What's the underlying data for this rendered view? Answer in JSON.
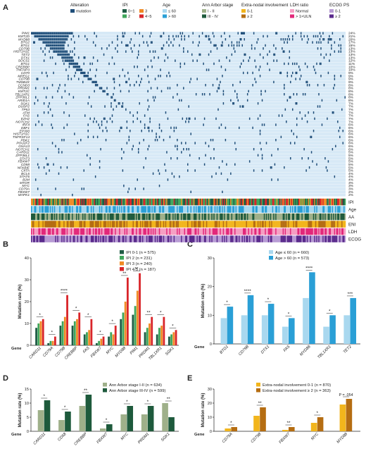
{
  "figure": {
    "panels": [
      "A",
      "B",
      "C",
      "D",
      "E"
    ],
    "axis_gene_label": "Gene",
    "mutation_rate_label": "Mutation rate (%)"
  },
  "legend_top": {
    "alteration": {
      "title": "Alteration",
      "items": [
        {
          "label": "mutation",
          "color": "#1f4e79"
        }
      ]
    },
    "ipi": {
      "title": "IPI",
      "items": [
        {
          "label": "0~1",
          "color": "#1f5c45"
        },
        {
          "label": "2",
          "color": "#3fa65b"
        },
        {
          "label": "3",
          "color": "#f08a24"
        },
        {
          "label": "4~5",
          "color": "#d9252a"
        }
      ]
    },
    "age": {
      "title": "Age",
      "items": [
        {
          "label": "≤ 60",
          "color": "#a9d8ef"
        },
        {
          "label": "> 60",
          "color": "#2a9fd6"
        }
      ]
    },
    "ann_arbor": {
      "title": "Ann Arbor stage",
      "items": [
        {
          "label": "I - II",
          "color": "#9fb08a"
        },
        {
          "label": "III - IV",
          "color": "#1e5a3c"
        }
      ]
    },
    "eni": {
      "title": "Extra-nodal involvement",
      "items": [
        {
          "label": "0-1",
          "color": "#f2b51c"
        },
        {
          "label": "≥ 2",
          "color": "#b56d12"
        }
      ]
    },
    "ldh": {
      "title": "LDH ratio",
      "items": [
        {
          "label": "Normal",
          "color": "#f59fc3"
        },
        {
          "label": "> 1×ULN",
          "color": "#e2287a"
        }
      ]
    },
    "ecog": {
      "title": "ECOG PS",
      "items": [
        {
          "label": "0-1",
          "color": "#b79bd4"
        },
        {
          "label": "≥ 2",
          "color": "#5a2a8c"
        }
      ]
    }
  },
  "annotation_tracks": [
    {
      "label": "IPI",
      "colors": [
        "#1f5c45",
        "#3fa65b",
        "#f08a24",
        "#d9252a"
      ]
    },
    {
      "label": "Age",
      "colors": [
        "#a9d8ef",
        "#2a9fd6"
      ]
    },
    {
      "label": "AA",
      "colors": [
        "#9fb08a",
        "#1e5a3c"
      ]
    },
    {
      "label": "ENI",
      "colors": [
        "#f2b51c",
        "#b56d12"
      ]
    },
    {
      "label": "LDH",
      "colors": [
        "#f59fc3",
        "#e2287a"
      ]
    },
    {
      "label": "ECOG",
      "colors": [
        "#b79bd4",
        "#5a2a8c"
      ]
    }
  ],
  "chart_data": [
    {
      "panel": "A",
      "type": "heatmap",
      "genes": [
        "PIM1",
        "KMT2D",
        "MYD88",
        "BTG2",
        "BTG1",
        "CD79B",
        "HIST1H1E",
        "TET2",
        "DTX1",
        "SOCS1",
        "BTG1",
        "CREBBP",
        "TNFAIP3",
        "CD70",
        "MPEG1",
        "CD79B",
        "TMSB4X",
        "CCND3",
        "PRDM1",
        "KMT2C",
        "TBL1XR1",
        "ZFP36L1",
        "ARID1A",
        "SGK1",
        "DUSP2",
        "TP53",
        "ATM",
        "FAS",
        "EZH2",
        "NOTCH2",
        "IRF4",
        "EBF1",
        "EP300",
        "HIST1H1C",
        "TNFRSF14",
        "PDK1",
        "POU2F2",
        "GNA13",
        "NOTCH1",
        "CARD11",
        "ZFP36L1",
        "STAT3",
        "FBXW7",
        "CD58",
        "NFKBIE",
        "CIITA",
        "BCL6",
        "STAT6",
        "B2M",
        "MTOR",
        "MYC",
        "CD79A",
        "FBXW7",
        "MAPK1"
      ],
      "percents": [
        "24%",
        "21%",
        "20%",
        "17%",
        "15%",
        "13%",
        "13%",
        "13%",
        "13%",
        "12%",
        "11%",
        "10%",
        "10%",
        "9%",
        "9%",
        "9%",
        "9%",
        "8%",
        "8%",
        "8%",
        "8%",
        "8%",
        "8%",
        "7%",
        "7%",
        "7%",
        "7%",
        "7%",
        "7%",
        "7%",
        "6%",
        "6%",
        "6%",
        "6%",
        "6%",
        "6%",
        "6%",
        "6%",
        "6%",
        "5%",
        "5%",
        "5%",
        "5%",
        "5%",
        "5%",
        "5%",
        "4%",
        "4%",
        "4%",
        "3%",
        "3%",
        "3%",
        "2%",
        "2%"
      ],
      "values": [
        24,
        21,
        20,
        17,
        15,
        13,
        13,
        13,
        13,
        12,
        11,
        10,
        10,
        9,
        9,
        9,
        9,
        8,
        8,
        8,
        8,
        8,
        8,
        7,
        7,
        7,
        7,
        7,
        7,
        7,
        6,
        6,
        6,
        6,
        6,
        6,
        6,
        6,
        6,
        5,
        5,
        5,
        5,
        5,
        5,
        5,
        4,
        4,
        4,
        3,
        3,
        3,
        2,
        2
      ],
      "tracks": [
        "IPI",
        "Age",
        "AA",
        "ENI",
        "LDH",
        "ECOG"
      ]
    },
    {
      "panel": "B",
      "type": "bar",
      "ylabel": "Mutation rate (%)",
      "ylim": [
        0,
        40
      ],
      "yticks": [
        0,
        10,
        20,
        30,
        40
      ],
      "categories": [
        "CARD11",
        "CD79A",
        "CD79B",
        "CREBBP",
        "FAS",
        "FBXW7",
        "MYC",
        "MYD88",
        "PIM1",
        "PRDM1",
        "TBL1XR1",
        "SGK1"
      ],
      "significance": [
        "*",
        "*",
        "****",
        "*",
        "*",
        "*",
        "*",
        "**",
        "**",
        "**",
        "*",
        "*"
      ],
      "series": [
        {
          "name": "IPI 0-1 (n = 575)",
          "color": "#1f5c45",
          "values": [
            8,
            1,
            9,
            9,
            5,
            1,
            4,
            12,
            14,
            6,
            5,
            4
          ]
        },
        {
          "name": "IPI 2 (n = 231)",
          "color": "#3fa65b",
          "values": [
            10,
            2,
            11,
            11,
            6,
            2,
            6,
            15,
            18,
            8,
            8,
            5
          ]
        },
        {
          "name": "IPI 3 (n = 240)",
          "color": "#f08a24",
          "values": [
            11,
            2,
            13,
            12,
            7,
            3,
            5,
            20,
            25,
            10,
            9,
            6
          ]
        },
        {
          "name": "IPI 4-5 (n = 187)",
          "color": "#d9252a",
          "values": [
            12,
            4,
            23,
            15,
            12,
            4,
            9,
            31,
            33,
            13,
            13,
            7
          ]
        }
      ]
    },
    {
      "panel": "C",
      "type": "bar",
      "ylabel": "Mutation rate (%)",
      "ylim": [
        0,
        30
      ],
      "yticks": [
        0,
        10,
        20,
        30
      ],
      "categories": [
        "BTG1",
        "CD79B",
        "DTX1",
        "FAS",
        "MYD88",
        "TBL1XR1",
        "TET2"
      ],
      "significance": [
        "*",
        "****",
        "*",
        "*",
        "****",
        "*",
        "***"
      ],
      "series": [
        {
          "name": "Age ≤ 60 (n = 660)",
          "color": "#a9d8ef",
          "values": [
            9,
            10,
            10,
            6,
            16,
            6,
            10
          ]
        },
        {
          "name": "Age > 60 (n = 573)",
          "color": "#2a9fd6",
          "values": [
            13,
            17,
            14,
            9,
            25,
            10,
            16
          ]
        }
      ]
    },
    {
      "panel": "D",
      "type": "bar",
      "ylabel": "Mutation rate (%)",
      "ylim": [
        0,
        15
      ],
      "yticks": [
        0,
        5,
        10,
        15
      ],
      "categories": [
        "CARD11",
        "CD58",
        "CREBBP",
        "FBXW7",
        "MYC",
        "PRDM1",
        "SGK1"
      ],
      "significance": [
        "*",
        "*",
        "**",
        "*",
        "*",
        "*",
        "**"
      ],
      "series": [
        {
          "name": "Ann Arbor stage I-II (n = 634)",
          "color": "#9fb08a",
          "values": [
            7.5,
            4,
            9,
            1,
            6,
            6,
            10
          ]
        },
        {
          "name": "Ann Arbor stage III-IV (n = 599)",
          "color": "#1e5a3c",
          "values": [
            11,
            7,
            13,
            2.5,
            9,
            9,
            5
          ]
        }
      ]
    },
    {
      "panel": "E",
      "type": "bar",
      "ylabel": "Mutation rate (%)",
      "ylim": [
        0,
        30
      ],
      "yticks": [
        0,
        10,
        20,
        30
      ],
      "categories": [
        "CD79A",
        "CD79B",
        "FBXW7",
        "MYC",
        "MYD88"
      ],
      "significance": [
        "*",
        "**",
        "**",
        "*",
        "P = .054"
      ],
      "series": [
        {
          "name": "Extra-nodal involvement 0-1 (n = 870)",
          "color": "#f2b51c",
          "values": [
            2,
            11,
            1,
            6,
            19
          ]
        },
        {
          "name": "Extra-nodal involvement ≥ 2 (n = 363)",
          "color": "#b56d12",
          "values": [
            3,
            17,
            3,
            10,
            23
          ]
        }
      ]
    }
  ]
}
